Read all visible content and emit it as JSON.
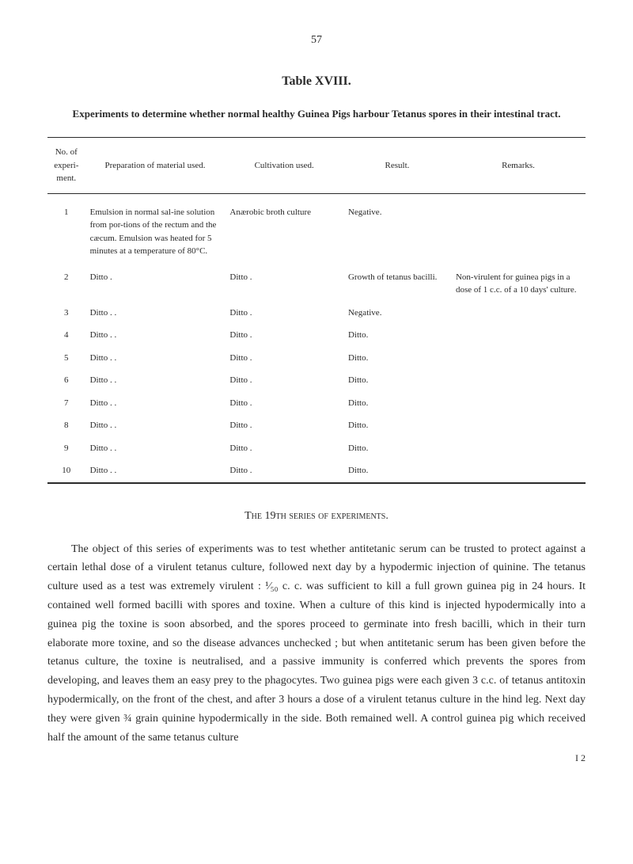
{
  "page": {
    "number": "57",
    "signature": "I 2"
  },
  "tableSection": {
    "title": "Table XVIII.",
    "caption": "Experiments to determine whether normal healthy Guinea Pigs harbour Tetanus spores in their intestinal tract.",
    "headers": {
      "no": "No. of experi-ment.",
      "prep": "Preparation of material used.",
      "cult": "Cultivation used.",
      "result": "Result.",
      "remarks": "Remarks."
    },
    "rows": [
      {
        "no": "1",
        "prep": "Emulsion in normal sal-ine solution from por-tions of the rectum and the cæcum. Emulsion was heated for 5 minutes at a temperature of 80°C.",
        "cult": "Anærobic broth culture",
        "result": "Negative.",
        "remarks": ""
      },
      {
        "no": "2",
        "prep": "Ditto .",
        "cult": "Ditto .",
        "result": "Growth of tetanus bacilli.",
        "remarks": "Non-virulent for guinea pigs in a dose of 1 c.c. of a 10 days' culture."
      },
      {
        "no": "3",
        "prep": "Ditto . .",
        "cult": "Ditto .",
        "result": "Negative.",
        "remarks": ""
      },
      {
        "no": "4",
        "prep": "Ditto . .",
        "cult": "Ditto .",
        "result": "Ditto.",
        "remarks": ""
      },
      {
        "no": "5",
        "prep": "Ditto . .",
        "cult": "Ditto .",
        "result": "Ditto.",
        "remarks": ""
      },
      {
        "no": "6",
        "prep": "Ditto . .",
        "cult": "Ditto .",
        "result": "Ditto.",
        "remarks": ""
      },
      {
        "no": "7",
        "prep": "Ditto . .",
        "cult": "Ditto .",
        "result": "Ditto.",
        "remarks": ""
      },
      {
        "no": "8",
        "prep": "Ditto . .",
        "cult": "Ditto .",
        "result": "Ditto.",
        "remarks": ""
      },
      {
        "no": "9",
        "prep": "Ditto . .",
        "cult": "Ditto .",
        "result": "Ditto.",
        "remarks": ""
      },
      {
        "no": "10",
        "prep": "Ditto . .",
        "cult": "Ditto .",
        "result": "Ditto.",
        "remarks": ""
      }
    ]
  },
  "textSection": {
    "heading": "The 19th series of experiments.",
    "paragraph": "The object of this series of experiments was to test whether antitetanic serum can be trusted to protect against a certain lethal dose of a virulent tetanus culture, followed next day by a hypodermic injection of quinine. The tetanus culture used as a test was extremely virulent : ¹⁄₅₀ c. c. was sufficient to kill a full grown guinea pig in 24 hours. It contained well formed bacilli with spores and toxine. When a culture of this kind is injected hypodermically into a guinea pig the toxine is soon absorbed, and the spores proceed to germinate into fresh bacilli, which in their turn elaborate more toxine, and so the disease advances unchecked ; but when antitetanic serum has been given before the tetanus culture, the toxine is neutralised, and a passive immunity is conferred which prevents the spores from developing, and leaves them an easy prey to the phagocytes. Two guinea pigs were each given 3 c.c. of tetanus antitoxin hypodermically, on the front of the chest, and after 3 hours a dose of a virulent tetanus culture in the hind leg. Next day they were given ¾ grain quinine hypodermically in the side. Both remained well. A control guinea pig which received half the amount of the same tetanus culture"
  }
}
